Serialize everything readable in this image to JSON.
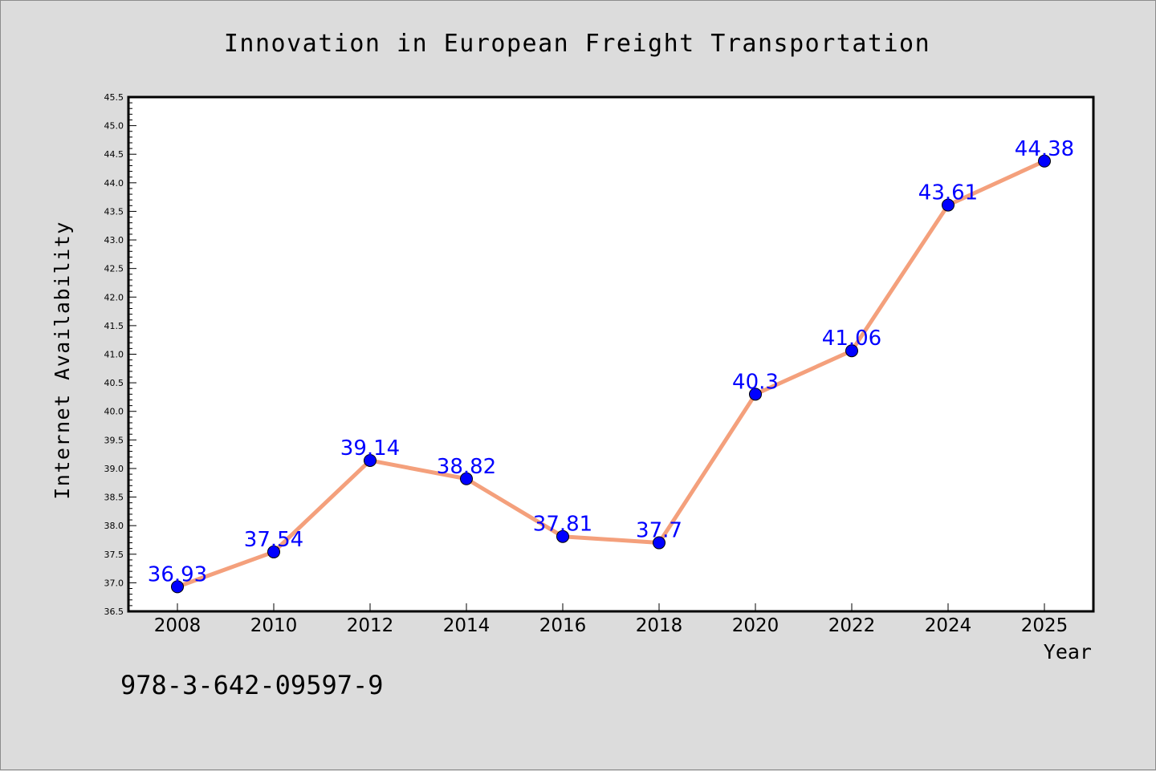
{
  "chart_data": {
    "type": "line",
    "title": "Innovation in European Freight Transportation",
    "xlabel": "Year",
    "ylabel": "Internet Availability",
    "categories": [
      "2008",
      "2010",
      "2012",
      "2014",
      "2016",
      "2018",
      "2020",
      "2022",
      "2024",
      "2025"
    ],
    "series": [
      {
        "values": [
          36.93,
          37.54,
          39.14,
          38.82,
          37.81,
          37.7,
          40.3,
          41.06,
          43.61,
          44.38
        ],
        "labels": [
          "36.93",
          "37.54",
          "39.14",
          "38.82",
          "37.81",
          "37.7",
          "40.3",
          "41.06",
          "43.61",
          "44.38"
        ],
        "line_color": "#f4a07c",
        "marker_color": "#0000ff",
        "label_color": "#0000ff"
      }
    ],
    "ylim": [
      36.5,
      45.5
    ],
    "yticks": [
      "36.5",
      "37.0",
      "37.5",
      "38.0",
      "38.5",
      "39.0",
      "39.5",
      "40.0",
      "40.5",
      "41.0",
      "41.5",
      "42.0",
      "42.5",
      "43.0",
      "43.5",
      "44.0",
      "44.5",
      "45.0",
      "45.5"
    ],
    "grid": false,
    "legend": "none"
  },
  "footer": {
    "isbn": "978-3-642-09597-9"
  },
  "colors": {
    "background": "#dcdcdc",
    "plot_background": "#ffffff",
    "axis": "#000000",
    "text": "#000000"
  }
}
